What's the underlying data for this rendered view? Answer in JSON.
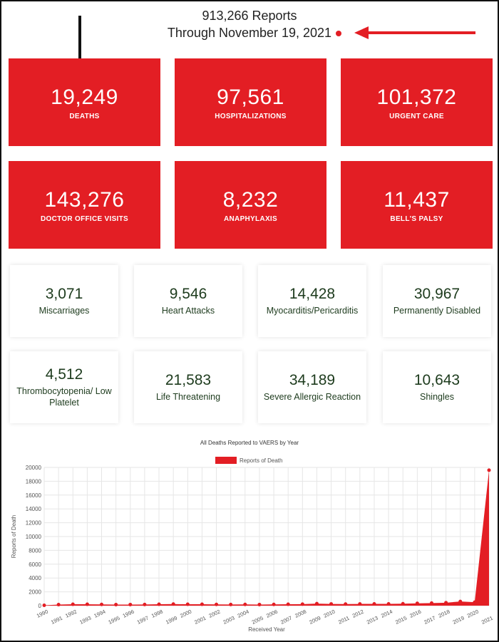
{
  "header": {
    "reports": "913,266 Reports",
    "through": "Through November 19, 2021"
  },
  "red_cards": [
    {
      "value": "19,249",
      "label": "DEATHS"
    },
    {
      "value": "97,561",
      "label": "HOSPITALIZATIONS"
    },
    {
      "value": "101,372",
      "label": "URGENT CARE"
    },
    {
      "value": "143,276",
      "label": "DOCTOR OFFICE VISITS"
    },
    {
      "value": "8,232",
      "label": "ANAPHYLAXIS"
    },
    {
      "value": "11,437",
      "label": "BELL'S PALSY"
    }
  ],
  "white_cards": [
    {
      "value": "3,071",
      "label": "Miscarriages"
    },
    {
      "value": "9,546",
      "label": "Heart Attacks"
    },
    {
      "value": "14,428",
      "label": "Myocarditis/Pericarditis"
    },
    {
      "value": "30,967",
      "label": "Permanently Disabled"
    },
    {
      "value": "4,512",
      "label": "Thrombocytopenia/ Low Platelet"
    },
    {
      "value": "21,583",
      "label": "Life Threatening"
    },
    {
      "value": "34,189",
      "label": "Severe Allergic Reaction"
    },
    {
      "value": "10,643",
      "label": "Shingles"
    }
  ],
  "chart": {
    "type": "area",
    "title": "All Deaths Reported to VAERS by Year",
    "x_label": "Received Year",
    "y_label": "Reports of Death",
    "categories": [
      "1990",
      "1991",
      "1992",
      "1993",
      "1994",
      "1995",
      "1996",
      "1997",
      "1998",
      "1999",
      "2000",
      "2001",
      "2002",
      "2003",
      "2004",
      "2005",
      "2006",
      "2007",
      "2008",
      "2009",
      "2010",
      "2011",
      "2012",
      "2013",
      "2014",
      "2015",
      "2016",
      "2017",
      "2018",
      "2019",
      "2020",
      "2021"
    ],
    "series": [
      {
        "name": "Reports of Death",
        "color": "#e31e24",
        "values": [
          50,
          150,
          200,
          200,
          180,
          150,
          160,
          170,
          200,
          230,
          200,
          200,
          180,
          170,
          180,
          160,
          180,
          200,
          220,
          300,
          250,
          230,
          250,
          260,
          260,
          280,
          340,
          370,
          430,
          600,
          500,
          19600
        ]
      }
    ],
    "ylim": [
      0,
      20000
    ],
    "yticks": [
      0,
      2000,
      4000,
      6000,
      8000,
      10000,
      12000,
      14000,
      16000,
      18000,
      20000
    ],
    "grid": true
  }
}
